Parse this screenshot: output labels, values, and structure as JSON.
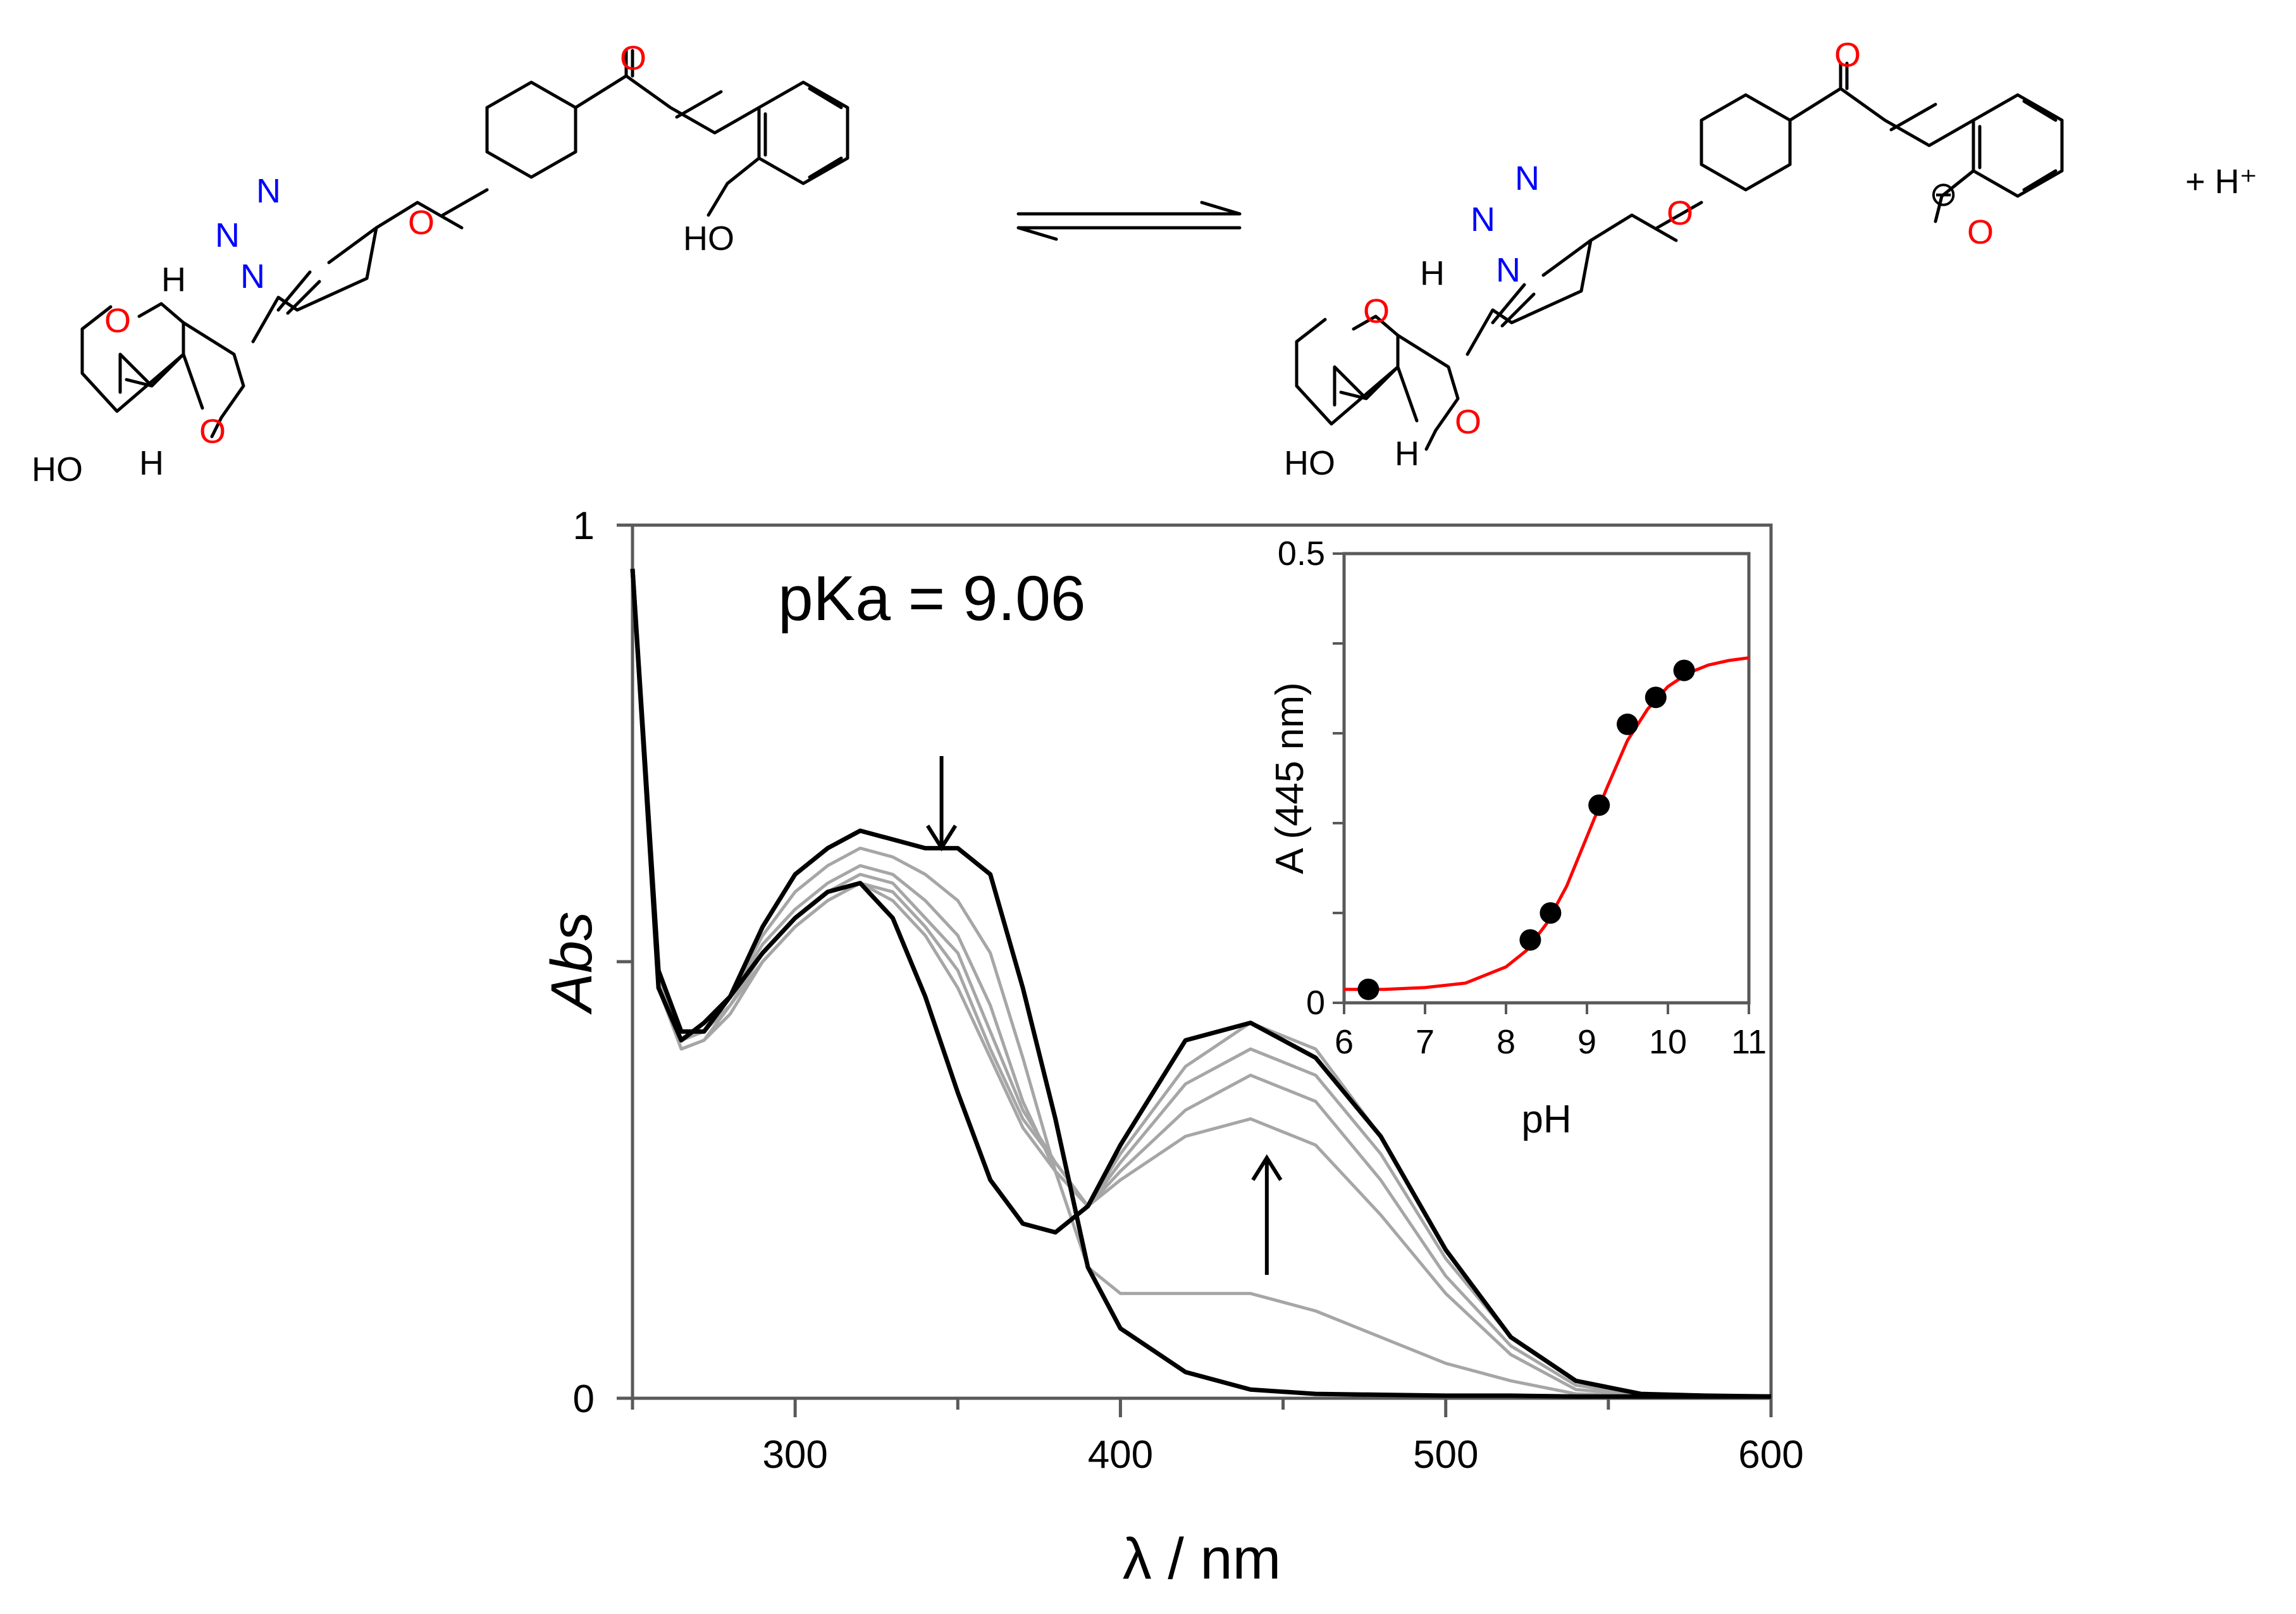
{
  "scheme": {
    "left_molecule": {
      "atoms": {
        "carbonyl_o": "O",
        "triazole_n1": "N",
        "triazole_n2": "N",
        "triazole_n3": "N",
        "ether_o": "O",
        "phenol_oh": "HO",
        "ring_o1": "O",
        "ring_o2": "O",
        "hydroxyl": "HO",
        "h_top": "H",
        "h_bottom": "H"
      }
    },
    "right_molecule": {
      "atoms": {
        "carbonyl_o": "O",
        "triazole_n1": "N",
        "triazole_n2": "N",
        "triazole_n3": "N",
        "ether_o": "O",
        "phenolate_o": "O",
        "phenolate_charge": "⊖",
        "ring_o1": "O",
        "ring_o2": "O",
        "hydroxyl": "HO",
        "h_top": "H",
        "h_bottom": "H"
      }
    },
    "product_proton": "+ H⁺",
    "colors": {
      "oxygen": "#ff0000",
      "nitrogen": "#0000ff",
      "bond": "#000000"
    }
  },
  "chart_data": [
    {
      "type": "line",
      "annotation": "pKa = 9.06",
      "xlabel": "λ / nm",
      "ylabel": "Abs",
      "xlim": [
        250,
        600
      ],
      "ylim": [
        0,
        1
      ],
      "x_ticks": [
        300,
        400,
        500,
        600
      ],
      "y_ticks": [
        0,
        1
      ],
      "arrows": [
        {
          "direction": "down",
          "at_nm": 345,
          "meaning": "decrease"
        },
        {
          "direction": "up",
          "at_nm": 445,
          "meaning": "increase"
        }
      ],
      "series": [
        {
          "color": "#000000",
          "x": [
            250,
            258,
            265,
            272,
            280,
            290,
            300,
            310,
            320,
            330,
            340,
            350,
            360,
            370,
            380,
            390,
            400,
            420,
            440,
            460,
            480,
            500,
            520,
            540,
            560,
            580,
            600
          ],
          "y": [
            0.95,
            0.49,
            0.42,
            0.42,
            0.46,
            0.54,
            0.6,
            0.63,
            0.65,
            0.64,
            0.63,
            0.63,
            0.6,
            0.47,
            0.32,
            0.15,
            0.08,
            0.03,
            0.01,
            0.005,
            0.004,
            0.003,
            0.003,
            0.002,
            0.002,
            0.002,
            0.002
          ]
        },
        {
          "color": "#a6a6a6",
          "x": [
            250,
            258,
            265,
            272,
            280,
            290,
            300,
            310,
            320,
            330,
            340,
            350,
            360,
            370,
            380,
            390,
            400,
            420,
            440,
            460,
            480,
            500,
            520,
            540,
            560,
            580,
            600
          ],
          "y": [
            0.95,
            0.48,
            0.42,
            0.42,
            0.46,
            0.53,
            0.58,
            0.61,
            0.63,
            0.62,
            0.6,
            0.57,
            0.51,
            0.39,
            0.26,
            0.15,
            0.12,
            0.12,
            0.12,
            0.1,
            0.07,
            0.04,
            0.02,
            0.005,
            0.003,
            0.002,
            0.002
          ]
        },
        {
          "color": "#a6a6a6",
          "x": [
            250,
            258,
            265,
            272,
            280,
            290,
            300,
            310,
            320,
            330,
            340,
            350,
            360,
            370,
            380,
            390,
            400,
            420,
            440,
            460,
            480,
            500,
            520,
            540,
            560,
            580,
            600
          ],
          "y": [
            0.95,
            0.48,
            0.42,
            0.42,
            0.46,
            0.52,
            0.56,
            0.59,
            0.61,
            0.6,
            0.57,
            0.53,
            0.45,
            0.34,
            0.26,
            0.22,
            0.25,
            0.3,
            0.32,
            0.29,
            0.21,
            0.12,
            0.05,
            0.01,
            0.004,
            0.002,
            0.002
          ]
        },
        {
          "color": "#a6a6a6",
          "x": [
            250,
            258,
            265,
            272,
            280,
            290,
            300,
            310,
            320,
            330,
            340,
            350,
            360,
            370,
            380,
            390,
            400,
            420,
            440,
            460,
            480,
            500,
            520,
            540,
            560,
            580,
            600
          ],
          "y": [
            0.95,
            0.48,
            0.41,
            0.42,
            0.45,
            0.51,
            0.55,
            0.58,
            0.6,
            0.59,
            0.55,
            0.51,
            0.42,
            0.33,
            0.27,
            0.22,
            0.26,
            0.33,
            0.37,
            0.34,
            0.25,
            0.14,
            0.06,
            0.015,
            0.004,
            0.002,
            0.002
          ]
        },
        {
          "color": "#a6a6a6",
          "x": [
            250,
            258,
            265,
            272,
            280,
            290,
            300,
            310,
            320,
            330,
            340,
            350,
            360,
            370,
            380,
            390,
            400,
            420,
            440,
            460,
            480,
            500,
            520,
            540,
            560,
            580,
            600
          ],
          "y": [
            0.95,
            0.47,
            0.4,
            0.41,
            0.45,
            0.5,
            0.54,
            0.57,
            0.59,
            0.58,
            0.54,
            0.49,
            0.4,
            0.32,
            0.27,
            0.22,
            0.27,
            0.36,
            0.4,
            0.37,
            0.28,
            0.16,
            0.07,
            0.02,
            0.005,
            0.002,
            0.002
          ]
        },
        {
          "color": "#a6a6a6",
          "x": [
            250,
            258,
            265,
            272,
            280,
            290,
            300,
            310,
            320,
            330,
            340,
            350,
            360,
            370,
            380,
            390,
            400,
            420,
            440,
            460,
            480,
            500,
            520,
            540,
            560,
            580,
            600
          ],
          "y": [
            0.95,
            0.47,
            0.4,
            0.41,
            0.44,
            0.5,
            0.54,
            0.57,
            0.59,
            0.57,
            0.53,
            0.47,
            0.39,
            0.31,
            0.26,
            0.22,
            0.28,
            0.38,
            0.43,
            0.4,
            0.3,
            0.17,
            0.07,
            0.02,
            0.005,
            0.002,
            0.002
          ]
        },
        {
          "color": "#000000",
          "x": [
            250,
            258,
            265,
            272,
            280,
            290,
            300,
            310,
            320,
            330,
            340,
            350,
            360,
            370,
            380,
            390,
            400,
            420,
            440,
            460,
            480,
            500,
            520,
            540,
            560,
            580,
            600
          ],
          "y": [
            0.95,
            0.47,
            0.41,
            0.43,
            0.46,
            0.51,
            0.55,
            0.58,
            0.59,
            0.55,
            0.46,
            0.35,
            0.25,
            0.2,
            0.19,
            0.22,
            0.29,
            0.41,
            0.43,
            0.39,
            0.3,
            0.17,
            0.07,
            0.02,
            0.005,
            0.003,
            0.002
          ]
        }
      ]
    },
    {
      "type": "scatter",
      "xlabel": "pH",
      "ylabel": "A (445 nm)",
      "xlim": [
        6,
        11
      ],
      "ylim": [
        0,
        0.5
      ],
      "x_ticks": [
        6,
        7,
        8,
        9,
        10,
        11
      ],
      "y_ticks": [
        0,
        0.5
      ],
      "points": {
        "x": [
          6.3,
          8.3,
          8.55,
          9.15,
          9.5,
          9.85,
          10.2
        ],
        "y": [
          0.015,
          0.07,
          0.1,
          0.22,
          0.31,
          0.34,
          0.37
        ]
      },
      "fit": {
        "color": "#ff0000",
        "pKa": 9.06,
        "x": [
          6,
          6.5,
          7,
          7.5,
          8,
          8.25,
          8.5,
          8.75,
          9,
          9.25,
          9.5,
          9.75,
          10,
          10.25,
          10.5,
          10.75,
          11
        ],
        "y": [
          0.015,
          0.015,
          0.017,
          0.022,
          0.04,
          0.058,
          0.088,
          0.13,
          0.185,
          0.24,
          0.292,
          0.327,
          0.352,
          0.367,
          0.376,
          0.381,
          0.384
        ]
      }
    }
  ]
}
